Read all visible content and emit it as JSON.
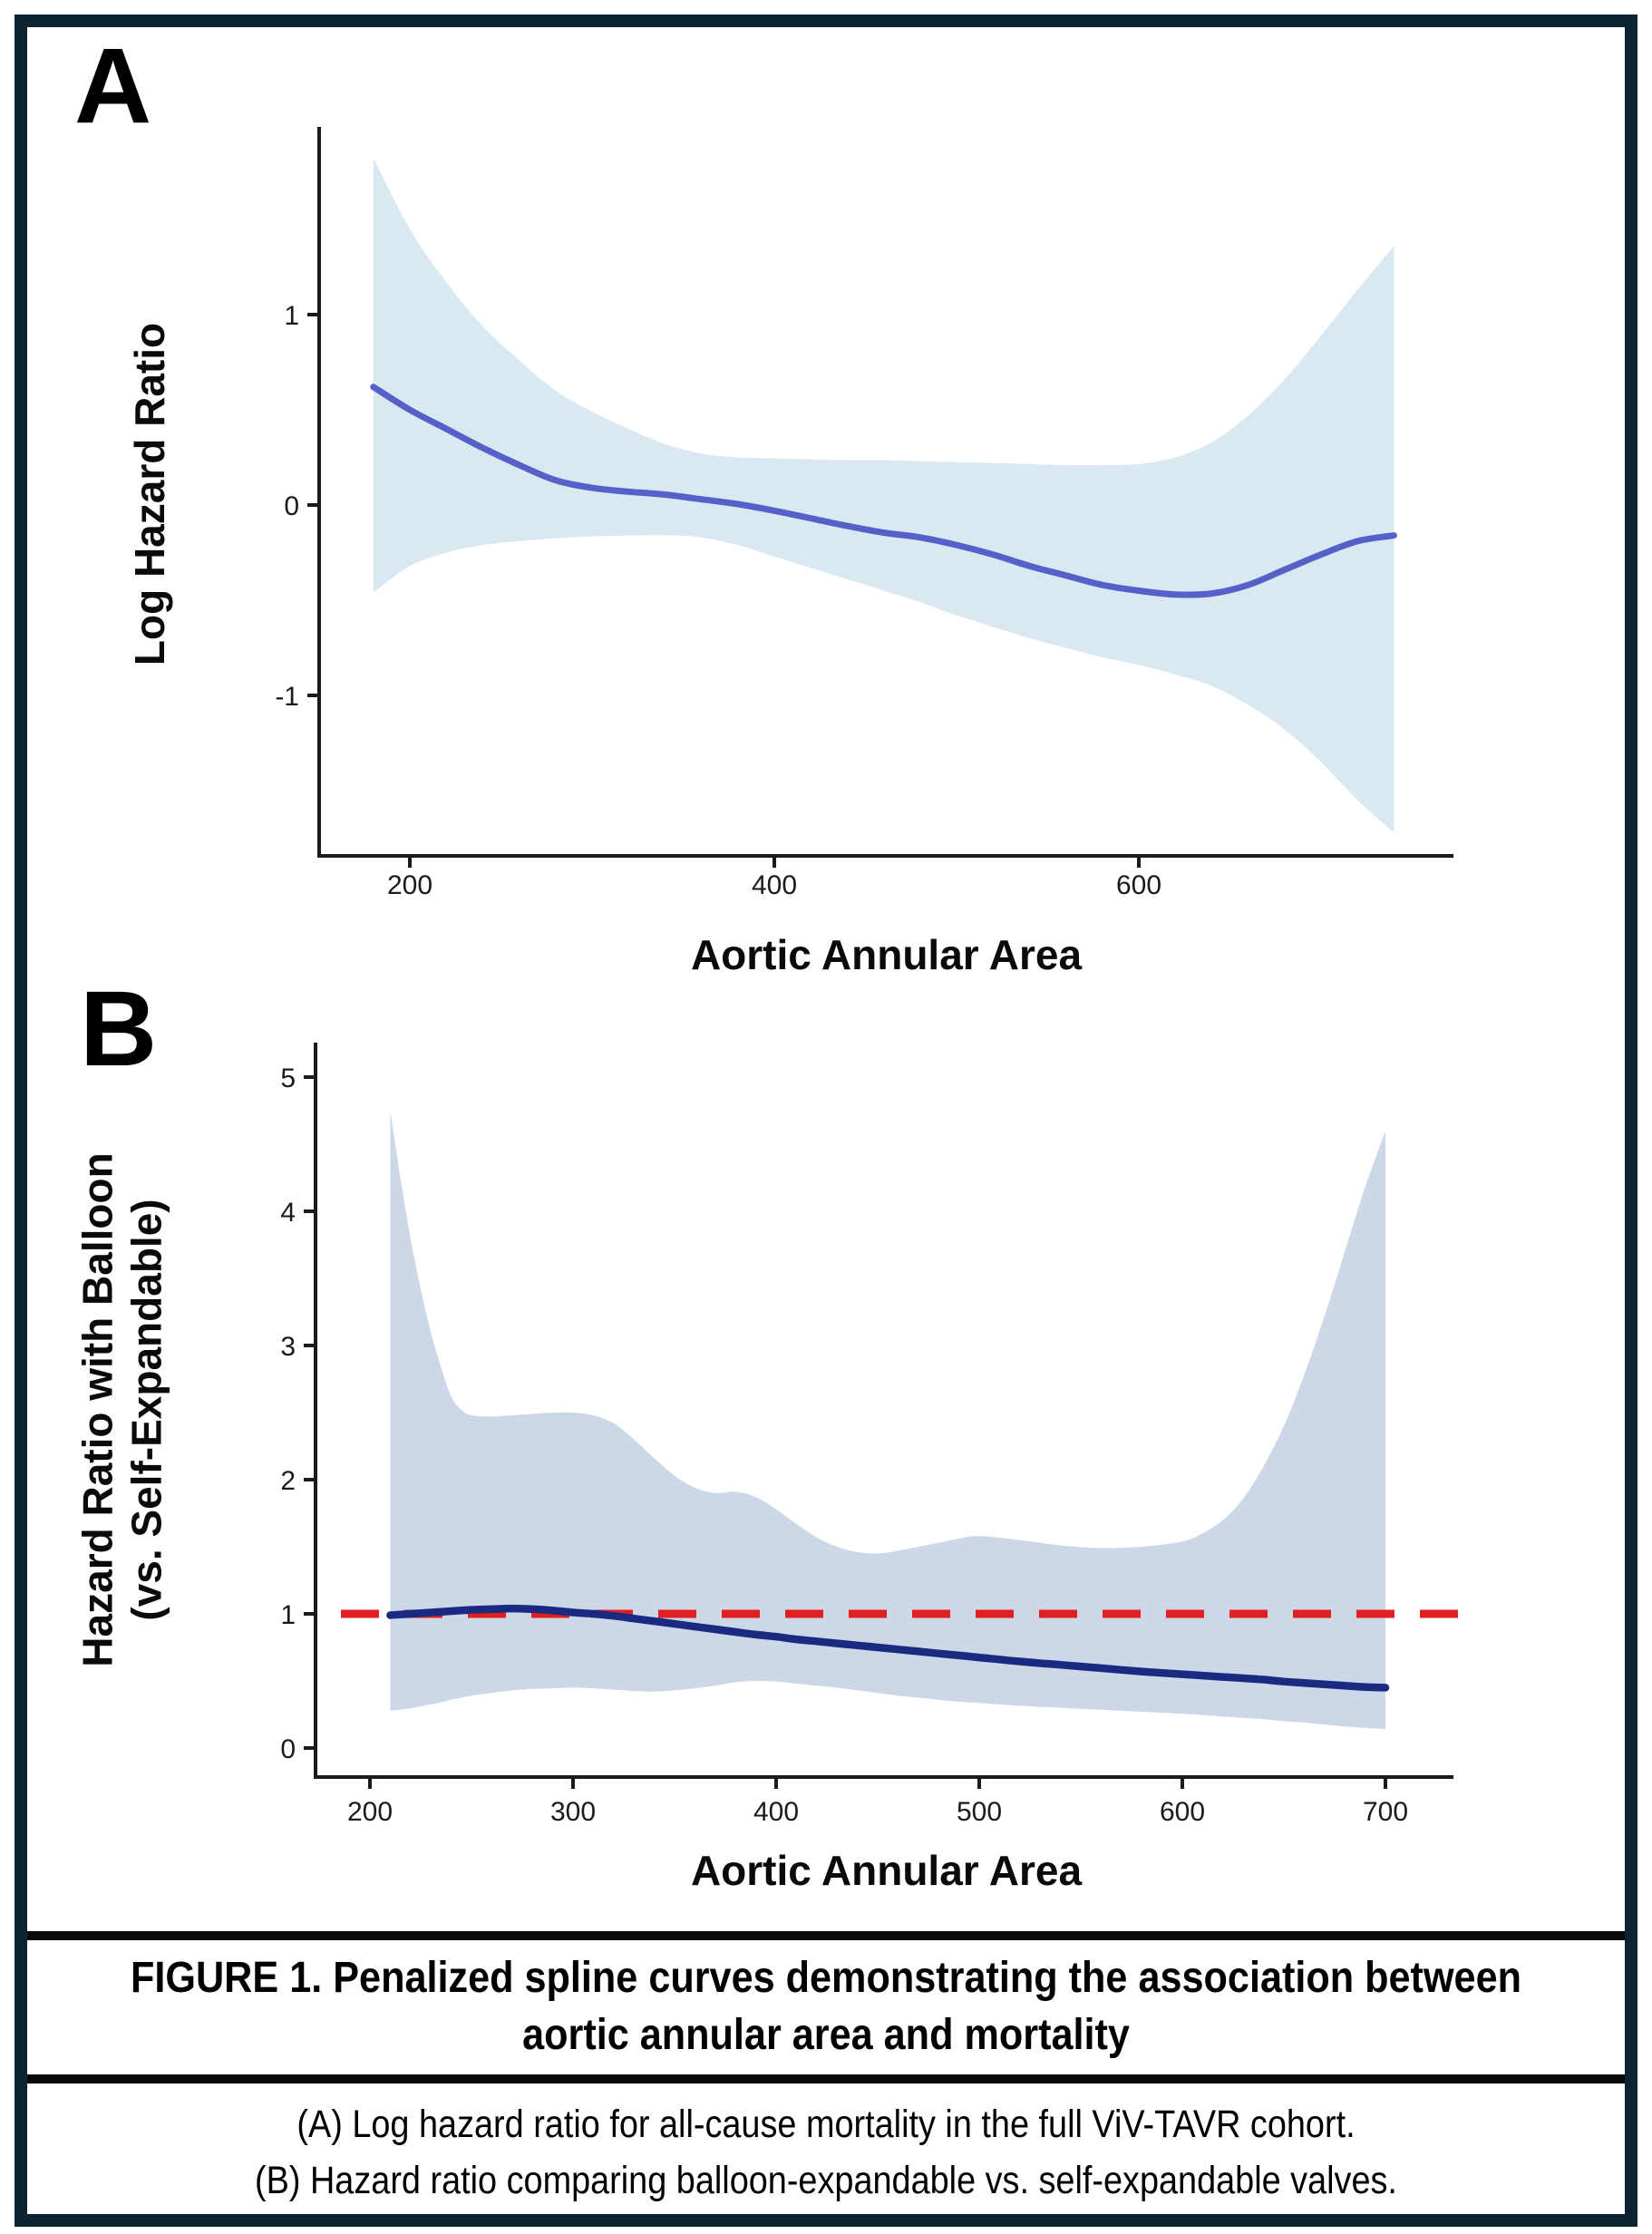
{
  "figure": {
    "panels": [
      {
        "label": "A",
        "xlabel": "Aortic Annular Area",
        "ylabel": "Log Hazard Ratio"
      },
      {
        "label": "B",
        "xlabel": "Aortic Annular Area",
        "ylabel_line1": "Hazard Ratio with Balloon",
        "ylabel_line2": "(vs. Self-Expandable)"
      }
    ],
    "caption": {
      "title_line1": "FIGURE 1. Penalized spline curves demonstrating the association between",
      "title_line2": "aortic annular area and mortality",
      "body_line1": "(A) Log hazard ratio for all-cause mortality in the full ViV-TAVR cohort.",
      "body_line2": "(B) Hazard ratio comparing balloon-expandable vs. self-expandable valves."
    }
  },
  "colors": {
    "frame": "#0d2433",
    "separator": "#0a0a0a",
    "axis": "#1a1a1a",
    "panel_a_band": "#d9e8f1",
    "panel_a_curve": "#5561c8",
    "panel_b_band": "#ccd8e8",
    "panel_b_curve": "#1a2a80",
    "reference_line": "#e02020"
  },
  "chart_data": [
    {
      "type": "line",
      "panel": "A",
      "title": "Penalized spline: log hazard ratio for all-cause mortality vs aortic annular area",
      "xlabel": "Aortic Annular Area",
      "ylabel": "Log Hazard Ratio",
      "xlim": [
        148,
        772
      ],
      "ylim": [
        -1.95,
        1.98
      ],
      "x_ticks": [
        200,
        400,
        600
      ],
      "y_ticks": [
        -1,
        0,
        1
      ],
      "grid": false,
      "legend": "none",
      "x": [
        180,
        200,
        220,
        240,
        260,
        280,
        300,
        320,
        340,
        360,
        380,
        400,
        420,
        440,
        460,
        480,
        500,
        520,
        540,
        560,
        580,
        600,
        620,
        640,
        660,
        680,
        700,
        720,
        740
      ],
      "series": [
        {
          "name": "spline_estimate",
          "values": [
            0.62,
            0.5,
            0.4,
            0.3,
            0.21,
            0.13,
            0.09,
            0.07,
            0.055,
            0.03,
            0.005,
            -0.03,
            -0.07,
            -0.11,
            -0.145,
            -0.17,
            -0.21,
            -0.26,
            -0.32,
            -0.37,
            -0.42,
            -0.45,
            -0.47,
            -0.465,
            -0.42,
            -0.34,
            -0.26,
            -0.19,
            -0.16
          ]
        },
        {
          "name": "ci_upper",
          "values": [
            1.82,
            1.45,
            1.17,
            0.94,
            0.76,
            0.6,
            0.49,
            0.4,
            0.32,
            0.27,
            0.25,
            0.245,
            0.24,
            0.235,
            0.235,
            0.23,
            0.225,
            0.22,
            0.215,
            0.21,
            0.21,
            0.215,
            0.25,
            0.33,
            0.47,
            0.66,
            0.89,
            1.13,
            1.36
          ]
        },
        {
          "name": "ci_lower",
          "values": [
            -0.46,
            -0.32,
            -0.25,
            -0.21,
            -0.19,
            -0.175,
            -0.165,
            -0.16,
            -0.158,
            -0.17,
            -0.21,
            -0.27,
            -0.33,
            -0.39,
            -0.45,
            -0.51,
            -0.58,
            -0.64,
            -0.7,
            -0.75,
            -0.8,
            -0.84,
            -0.89,
            -0.95,
            -1.05,
            -1.18,
            -1.35,
            -1.55,
            -1.72
          ]
        }
      ]
    },
    {
      "type": "line",
      "panel": "B",
      "title": "Penalized spline: hazard ratio balloon-expandable vs self-expandable by aortic annular area",
      "xlabel": "Aortic Annular Area",
      "ylabel": "Hazard Ratio with Balloon (vs. Self-Expandable)",
      "xlim": [
        175,
        734
      ],
      "ylim": [
        -0.22,
        5.2
      ],
      "x_ticks": [
        200,
        300,
        400,
        500,
        600,
        700
      ],
      "y_ticks": [
        0,
        1,
        2,
        3,
        4,
        5
      ],
      "grid": false,
      "legend": "none",
      "reference_line": {
        "y": 1,
        "style": "dashed"
      },
      "x": [
        210,
        215,
        220,
        225,
        230,
        235,
        240,
        245,
        250,
        260,
        270,
        280,
        290,
        300,
        310,
        320,
        330,
        340,
        350,
        360,
        370,
        380,
        390,
        400,
        410,
        420,
        430,
        440,
        450,
        460,
        470,
        480,
        490,
        500,
        520,
        540,
        560,
        580,
        600,
        610,
        620,
        630,
        640,
        650,
        660,
        670,
        680,
        690,
        700
      ],
      "series": [
        {
          "name": "spline_estimate",
          "values": [
            0.99,
            0.995,
            1.0,
            1.005,
            1.01,
            1.015,
            1.02,
            1.025,
            1.03,
            1.035,
            1.04,
            1.035,
            1.025,
            1.01,
            1.0,
            0.985,
            0.965,
            0.945,
            0.925,
            0.905,
            0.885,
            0.865,
            0.845,
            0.83,
            0.81,
            0.795,
            0.78,
            0.765,
            0.75,
            0.735,
            0.72,
            0.705,
            0.69,
            0.675,
            0.645,
            0.62,
            0.595,
            0.57,
            0.55,
            0.54,
            0.53,
            0.52,
            0.51,
            0.495,
            0.485,
            0.475,
            0.465,
            0.455,
            0.45
          ]
        },
        {
          "name": "ci_upper",
          "values": [
            4.75,
            4.25,
            3.8,
            3.42,
            3.1,
            2.84,
            2.62,
            2.52,
            2.48,
            2.47,
            2.48,
            2.49,
            2.5,
            2.5,
            2.48,
            2.42,
            2.3,
            2.16,
            2.03,
            1.94,
            1.9,
            1.91,
            1.87,
            1.78,
            1.67,
            1.57,
            1.5,
            1.46,
            1.45,
            1.47,
            1.5,
            1.53,
            1.56,
            1.58,
            1.55,
            1.51,
            1.49,
            1.5,
            1.54,
            1.6,
            1.7,
            1.86,
            2.1,
            2.4,
            2.78,
            3.22,
            3.7,
            4.18,
            4.6
          ]
        },
        {
          "name": "ci_lower",
          "values": [
            0.28,
            0.285,
            0.295,
            0.31,
            0.325,
            0.34,
            0.36,
            0.375,
            0.39,
            0.41,
            0.43,
            0.44,
            0.445,
            0.45,
            0.445,
            0.435,
            0.425,
            0.42,
            0.43,
            0.445,
            0.465,
            0.49,
            0.5,
            0.495,
            0.48,
            0.465,
            0.45,
            0.43,
            0.41,
            0.39,
            0.375,
            0.36,
            0.345,
            0.335,
            0.315,
            0.3,
            0.285,
            0.27,
            0.255,
            0.245,
            0.235,
            0.225,
            0.215,
            0.2,
            0.19,
            0.175,
            0.16,
            0.15,
            0.14
          ]
        }
      ]
    }
  ]
}
